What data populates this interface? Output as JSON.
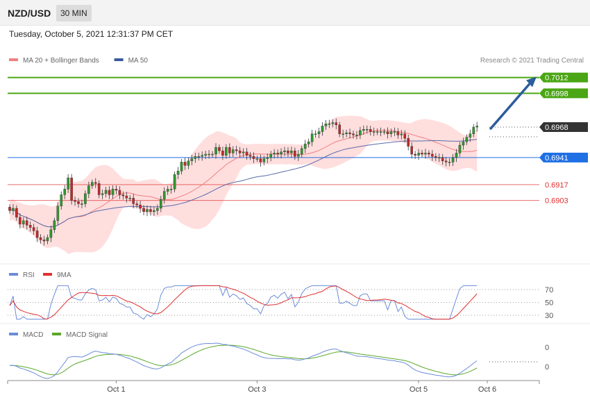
{
  "header": {
    "symbol": "NZD/USD",
    "timeframe": "30 MIN",
    "datetime": "Tuesday, October 5, 2021 12:31:37 PM CET"
  },
  "colors": {
    "green": "#4aa614",
    "blue": "#1f6fe5",
    "red": "#e03030",
    "dark": "#333333",
    "bb": "#ffd3d3",
    "ma20": "#f08080",
    "ma50": "#5a6aa8",
    "rsi": "#6a8cd8",
    "rsi9": "#e03030",
    "macd": "#6a8cd8",
    "signal": "#5aa82a",
    "arrow": "#2c5d9c"
  },
  "chart_data": [
    {
      "type": "candlestick",
      "panel": "price",
      "legend": [
        {
          "name": "MA 20 + Bollinger Bands",
          "color": "#f08080",
          "icon": "legend-swatch"
        },
        {
          "name": "MA 50",
          "color": "#3a5a9a",
          "icon": "legend-swatch"
        }
      ],
      "copyright": "Research © 2021 Trading Central",
      "ylim": [
        0.6859,
        0.7021
      ],
      "levels": [
        {
          "value": 0.7012,
          "label": "0.7012",
          "color": "#4aa614",
          "style": "solid",
          "tag": "box"
        },
        {
          "value": 0.6998,
          "label": "0.6998",
          "color": "#4aa614",
          "style": "solid",
          "tag": "box"
        },
        {
          "value": 0.6968,
          "label": "0.6968",
          "color": "#333333",
          "style": "dotted",
          "tag": "box"
        },
        {
          "value": 0.6941,
          "label": "0.6941",
          "color": "#1f6fe5",
          "style": "solid",
          "tag": "box"
        },
        {
          "value": 0.6917,
          "label": "0.6917",
          "color": "#e03030",
          "style": "thin",
          "tag": "text"
        },
        {
          "value": 0.6903,
          "label": "0.6903",
          "color": "#e03030",
          "style": "thin",
          "tag": "text"
        }
      ],
      "arrow": {
        "from": 0.6968,
        "to": 0.7009
      },
      "close": [
        0.6894,
        0.6896,
        0.6888,
        0.6882,
        0.6885,
        0.6881,
        0.6879,
        0.6876,
        0.687,
        0.6868,
        0.6867,
        0.687,
        0.6877,
        0.6885,
        0.6898,
        0.6908,
        0.6913,
        0.6923,
        0.6903,
        0.6902,
        0.69,
        0.69,
        0.6909,
        0.6916,
        0.6919,
        0.6918,
        0.6908,
        0.6909,
        0.6912,
        0.6908,
        0.6913,
        0.6912,
        0.6908,
        0.6907,
        0.6905,
        0.6905,
        0.69,
        0.6899,
        0.6896,
        0.6893,
        0.6895,
        0.6893,
        0.6894,
        0.6896,
        0.6904,
        0.6911,
        0.6913,
        0.6913,
        0.6926,
        0.6929,
        0.6937,
        0.6934,
        0.6938,
        0.694,
        0.6942,
        0.6942,
        0.6943,
        0.6944,
        0.6944,
        0.6944,
        0.695,
        0.6947,
        0.6943,
        0.695,
        0.6945,
        0.6948,
        0.6947,
        0.6945,
        0.6946,
        0.6943,
        0.6942,
        0.694,
        0.694,
        0.6937,
        0.694,
        0.6941,
        0.6944,
        0.6945,
        0.6944,
        0.6946,
        0.6947,
        0.6945,
        0.6947,
        0.6942,
        0.6944,
        0.6949,
        0.6953,
        0.6955,
        0.6962,
        0.6962,
        0.6964,
        0.6969,
        0.6971,
        0.6971,
        0.6972,
        0.697,
        0.6962,
        0.6962,
        0.6963,
        0.6962,
        0.6961,
        0.6961,
        0.6965,
        0.6966,
        0.6966,
        0.6964,
        0.6964,
        0.6964,
        0.6964,
        0.6964,
        0.6962,
        0.6964,
        0.6964,
        0.6961,
        0.6962,
        0.6958,
        0.6951,
        0.6944,
        0.6943,
        0.6945,
        0.6944,
        0.6945,
        0.6944,
        0.6942,
        0.6941,
        0.6941,
        0.6938,
        0.6937,
        0.6937,
        0.6941,
        0.6945,
        0.6952,
        0.6955,
        0.6959,
        0.6962,
        0.6968,
        0.6969
      ],
      "rsi": {
        "name": "RSI",
        "ticks": [
          70,
          50,
          30
        ],
        "ma_name": "9MA"
      },
      "macd": {
        "name": "MACD",
        "signal_name": "MACD Signal",
        "ticks": [
          "0",
          "0"
        ]
      },
      "x_ticks": [
        {
          "index": 31,
          "label": "Oct 1"
        },
        {
          "index": 72,
          "label": "Oct 3"
        },
        {
          "index": 119,
          "label": "Oct 5"
        },
        {
          "index": 139,
          "label": "Oct 6"
        }
      ]
    }
  ]
}
